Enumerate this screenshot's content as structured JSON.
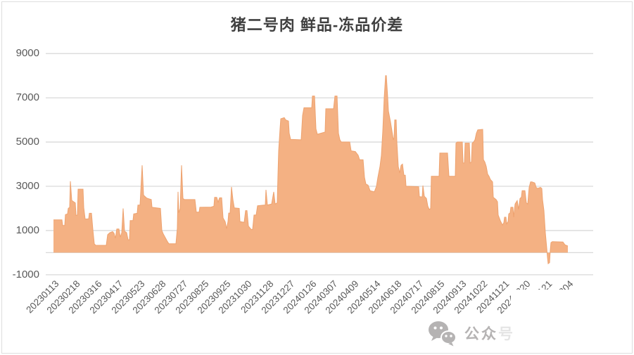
{
  "title": "猪二号肉 鲜品-冻品价差",
  "watermark": {
    "text_main": "公众",
    "text_faded": "号",
    "icon": "wechat-icon"
  },
  "colors": {
    "area_fill": "#F4B183",
    "area_edge": "#EDA26F",
    "gridline": "#D9D9D9",
    "axis_label": "#595959",
    "title": "#404040",
    "watermark": "#B5B3B3",
    "border": "#DEDEDE"
  },
  "chart_data": {
    "type": "area",
    "title": "猪二号肉 鲜品-冻品价差",
    "grid": true,
    "legend": false,
    "ylim": [
      -1000,
      9000
    ],
    "y_ticks": [
      9000,
      7000,
      5000,
      3000,
      1000,
      -1000
    ],
    "baseline": 0,
    "x_tick_labels": [
      "20230113",
      "20230218",
      "20230316",
      "20230417",
      "20230523",
      "20230628",
      "20230727",
      "20230825",
      "20230925",
      "20231030",
      "20231128",
      "20231227",
      "20240126",
      "20240307",
      "20240409",
      "20240514",
      "20240618",
      "20240717",
      "20240815",
      "20240913",
      "20241022",
      "20241121",
      "20241220",
      "20250121",
      "20250304"
    ],
    "x_axis_note": "daily price spread, offsets map linearly from 20230113 (0) to 20250304 (731)",
    "points": [
      [
        0,
        1480
      ],
      [
        12,
        1480
      ],
      [
        13,
        1230
      ],
      [
        16,
        1230
      ],
      [
        17,
        1720
      ],
      [
        20,
        1750
      ],
      [
        21,
        2000
      ],
      [
        23,
        2050
      ],
      [
        24,
        3230
      ],
      [
        26,
        2360
      ],
      [
        31,
        2250
      ],
      [
        32,
        1680
      ],
      [
        34,
        1700
      ],
      [
        35,
        2870
      ],
      [
        42,
        2870
      ],
      [
        43,
        2040
      ],
      [
        45,
        1520
      ],
      [
        50,
        1530
      ],
      [
        51,
        1780
      ],
      [
        54,
        1780
      ],
      [
        56,
        1030
      ],
      [
        58,
        400
      ],
      [
        60,
        330
      ],
      [
        75,
        330
      ],
      [
        77,
        810
      ],
      [
        80,
        900
      ],
      [
        84,
        950
      ],
      [
        86,
        880
      ],
      [
        88,
        650
      ],
      [
        90,
        1070
      ],
      [
        93,
        1070
      ],
      [
        95,
        700
      ],
      [
        97,
        900
      ],
      [
        99,
        2000
      ],
      [
        101,
        970
      ],
      [
        104,
        900
      ],
      [
        106,
        580
      ],
      [
        108,
        580
      ],
      [
        109,
        1450
      ],
      [
        113,
        1450
      ],
      [
        114,
        1750
      ],
      [
        119,
        1780
      ],
      [
        120,
        2150
      ],
      [
        123,
        2150
      ],
      [
        126,
        3950
      ],
      [
        128,
        2600
      ],
      [
        132,
        2480
      ],
      [
        134,
        2450
      ],
      [
        139,
        2400
      ],
      [
        140,
        2050
      ],
      [
        152,
        2000
      ],
      [
        154,
        1000
      ],
      [
        156,
        850
      ],
      [
        162,
        500
      ],
      [
        164,
        400
      ],
      [
        174,
        400
      ],
      [
        176,
        1100
      ],
      [
        177,
        2750
      ],
      [
        178,
        1800
      ],
      [
        180,
        2000
      ],
      [
        182,
        3950
      ],
      [
        184,
        2450
      ],
      [
        186,
        2400
      ],
      [
        201,
        2400
      ],
      [
        203,
        1830
      ],
      [
        207,
        1830
      ],
      [
        208,
        2050
      ],
      [
        224,
        2060
      ],
      [
        228,
        2100
      ],
      [
        229,
        2500
      ],
      [
        232,
        2500
      ],
      [
        234,
        2280
      ],
      [
        236,
        2480
      ],
      [
        239,
        2480
      ],
      [
        241,
        1570
      ],
      [
        244,
        1400
      ],
      [
        246,
        1080
      ],
      [
        248,
        1400
      ],
      [
        249,
        1790
      ],
      [
        251,
        1790
      ],
      [
        253,
        2970
      ],
      [
        255,
        2400
      ],
      [
        257,
        2020
      ],
      [
        264,
        2000
      ],
      [
        265,
        1400
      ],
      [
        271,
        1370
      ],
      [
        273,
        1900
      ],
      [
        275,
        1900
      ],
      [
        277,
        1200
      ],
      [
        281,
        1050
      ],
      [
        283,
        1050
      ],
      [
        285,
        1700
      ],
      [
        288,
        1700
      ],
      [
        290,
        2120
      ],
      [
        299,
        2150
      ],
      [
        301,
        2150
      ],
      [
        302,
        2840
      ],
      [
        304,
        2150
      ],
      [
        310,
        2200
      ],
      [
        313,
        2750
      ],
      [
        315,
        2200
      ],
      [
        318,
        2250
      ],
      [
        319,
        3500
      ],
      [
        320,
        4600
      ],
      [
        322,
        5600
      ],
      [
        323,
        6050
      ],
      [
        328,
        6100
      ],
      [
        330,
        6000
      ],
      [
        334,
        5950
      ],
      [
        335,
        5400
      ],
      [
        337,
        5120
      ],
      [
        352,
        5100
      ],
      [
        354,
        6200
      ],
      [
        356,
        6550
      ],
      [
        367,
        6550
      ],
      [
        368,
        7080
      ],
      [
        371,
        7080
      ],
      [
        373,
        5600
      ],
      [
        375,
        5350
      ],
      [
        386,
        5450
      ],
      [
        387,
        6500
      ],
      [
        398,
        6500
      ],
      [
        400,
        7080
      ],
      [
        403,
        7080
      ],
      [
        405,
        5400
      ],
      [
        407,
        5100
      ],
      [
        409,
        5000
      ],
      [
        421,
        5000
      ],
      [
        423,
        4600
      ],
      [
        429,
        4570
      ],
      [
        433,
        4400
      ],
      [
        435,
        4200
      ],
      [
        440,
        4200
      ],
      [
        442,
        3400
      ],
      [
        444,
        3100
      ],
      [
        447,
        3050
      ],
      [
        450,
        2800
      ],
      [
        456,
        2750
      ],
      [
        459,
        3000
      ],
      [
        461,
        3400
      ],
      [
        464,
        3900
      ],
      [
        466,
        4400
      ],
      [
        468,
        5500
      ],
      [
        470,
        7000
      ],
      [
        472,
        8000
      ],
      [
        473,
        8000
      ],
      [
        475,
        7000
      ],
      [
        476,
        6400
      ],
      [
        479,
        5900
      ],
      [
        481,
        5500
      ],
      [
        483,
        5100
      ],
      [
        484,
        5200
      ],
      [
        485,
        6000
      ],
      [
        487,
        6000
      ],
      [
        488,
        5000
      ],
      [
        490,
        3900
      ],
      [
        492,
        3600
      ],
      [
        494,
        3950
      ],
      [
        496,
        4000
      ],
      [
        498,
        3500
      ],
      [
        500,
        3500
      ],
      [
        501,
        3000
      ],
      [
        504,
        3000
      ],
      [
        519,
        2980
      ],
      [
        520,
        2530
      ],
      [
        524,
        2520
      ],
      [
        525,
        3030
      ],
      [
        527,
        2550
      ],
      [
        530,
        2450
      ],
      [
        532,
        2100
      ],
      [
        534,
        1950
      ],
      [
        536,
        2000
      ],
      [
        537,
        3450
      ],
      [
        548,
        3450
      ],
      [
        549,
        4500
      ],
      [
        560,
        4500
      ],
      [
        562,
        3450
      ],
      [
        571,
        3450
      ],
      [
        572,
        4950
      ],
      [
        574,
        5000
      ],
      [
        581,
        5000
      ],
      [
        582,
        4050
      ],
      [
        584,
        4050
      ],
      [
        585,
        4950
      ],
      [
        591,
        4950
      ],
      [
        592,
        4050
      ],
      [
        594,
        4100
      ],
      [
        595,
        4950
      ],
      [
        597,
        5000
      ],
      [
        599,
        5100
      ],
      [
        601,
        5400
      ],
      [
        603,
        5550
      ],
      [
        610,
        5570
      ],
      [
        611,
        4200
      ],
      [
        613,
        4100
      ],
      [
        615,
        3900
      ],
      [
        617,
        3550
      ],
      [
        619,
        3450
      ],
      [
        621,
        3300
      ],
      [
        624,
        3200
      ],
      [
        625,
        2500
      ],
      [
        629,
        2400
      ],
      [
        631,
        2300
      ],
      [
        632,
        1700
      ],
      [
        635,
        1450
      ],
      [
        638,
        1250
      ],
      [
        640,
        1350
      ],
      [
        641,
        1600
      ],
      [
        643,
        1600
      ],
      [
        644,
        1300
      ],
      [
        646,
        1400
      ],
      [
        647,
        1750
      ],
      [
        649,
        1800
      ],
      [
        650,
        2050
      ],
      [
        653,
        2050
      ],
      [
        654,
        1600
      ],
      [
        656,
        2200
      ],
      [
        659,
        2350
      ],
      [
        661,
        1950
      ],
      [
        663,
        2450
      ],
      [
        665,
        2500
      ],
      [
        666,
        2800
      ],
      [
        670,
        2800
      ],
      [
        672,
        2250
      ],
      [
        674,
        2200
      ],
      [
        676,
        2950
      ],
      [
        678,
        3200
      ],
      [
        680,
        3200
      ],
      [
        684,
        3150
      ],
      [
        686,
        2950
      ],
      [
        688,
        2900
      ],
      [
        692,
        2950
      ],
      [
        694,
        2900
      ],
      [
        695,
        2400
      ],
      [
        697,
        1900
      ],
      [
        699,
        900
      ],
      [
        701,
        200
      ],
      [
        702,
        -200
      ],
      [
        703,
        -500
      ],
      [
        705,
        -450
      ],
      [
        706,
        100
      ],
      [
        707,
        450
      ],
      [
        709,
        500
      ],
      [
        724,
        480
      ],
      [
        727,
        350
      ],
      [
        731,
        300
      ]
    ]
  }
}
